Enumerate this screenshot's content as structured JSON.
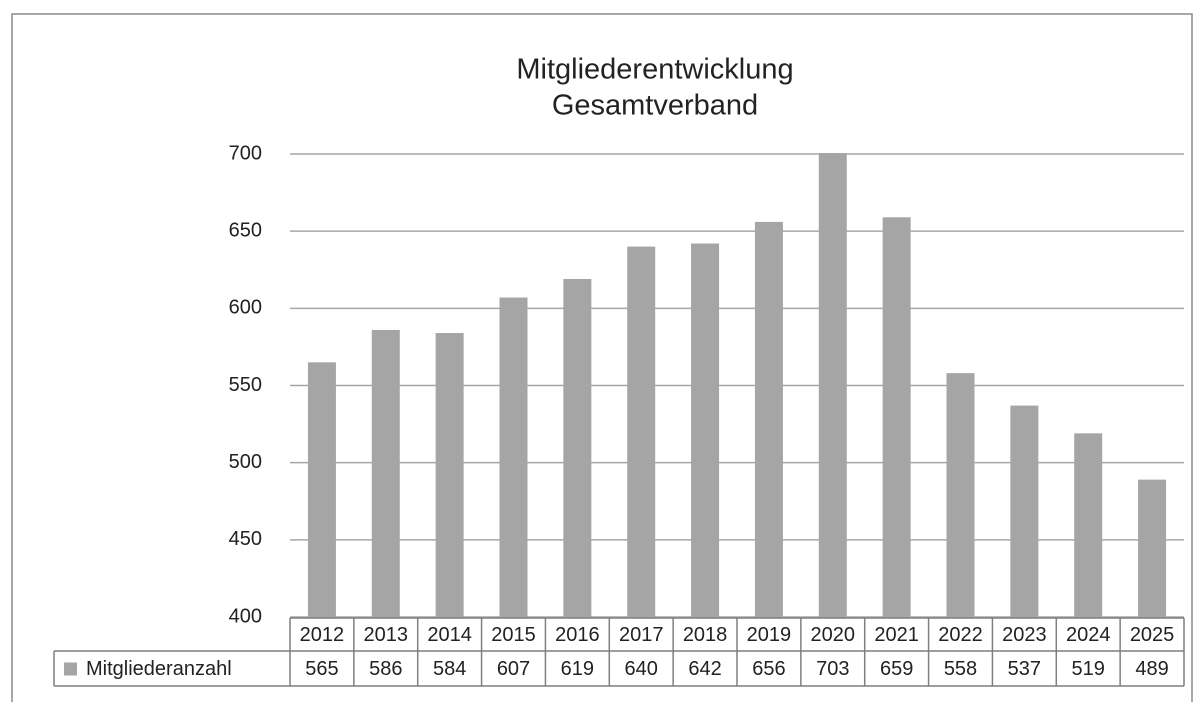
{
  "chart_data": {
    "type": "bar",
    "title": [
      "Mitgliederentwicklung",
      "Gesamtverband"
    ],
    "categories": [
      "2012",
      "2013",
      "2014",
      "2015",
      "2016",
      "2017",
      "2018",
      "2019",
      "2020",
      "2021",
      "2022",
      "2023",
      "2024",
      "2025"
    ],
    "series": [
      {
        "name": "Mitgliederanzahl",
        "color": "#a5a5a5",
        "values": [
          565,
          586,
          584,
          607,
          619,
          640,
          642,
          656,
          703,
          659,
          558,
          537,
          519,
          489
        ]
      }
    ],
    "ylim": [
      400,
      700
    ],
    "yticks": [
      400,
      450,
      500,
      550,
      600,
      650,
      700
    ],
    "grid": true,
    "data_table": true
  }
}
